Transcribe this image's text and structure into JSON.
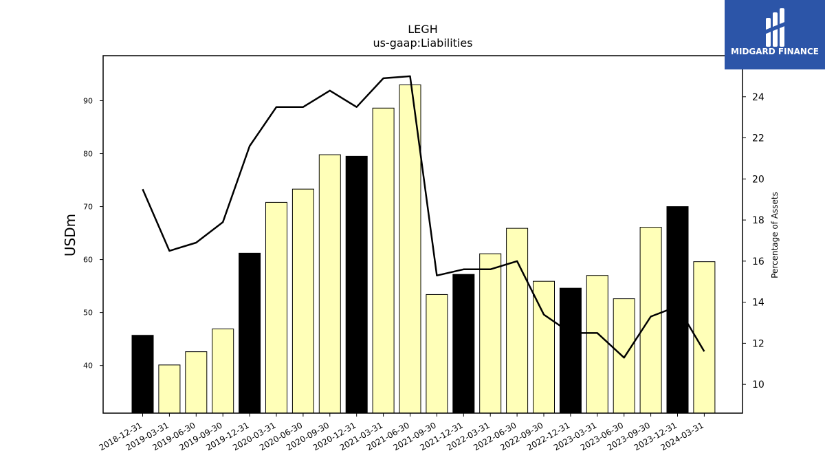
{
  "chart_data": {
    "type": "bar",
    "title": "LEGH",
    "subtitle": "us-gaap:Liabilities",
    "ylabel": "USDm",
    "y2label": "Percentage of Assets",
    "categories": [
      "2018-12-31",
      "2019-03-31",
      "2019-06-30",
      "2019-09-30",
      "2019-12-31",
      "2020-03-31",
      "2020-06-30",
      "2020-09-30",
      "2020-12-31",
      "2021-03-31",
      "2021-06-30",
      "2021-09-30",
      "2021-12-31",
      "2022-03-31",
      "2022-06-30",
      "2022-09-30",
      "2022-12-31",
      "2023-03-31",
      "2023-06-30",
      "2023-09-30",
      "2023-12-31",
      "2024-03-31"
    ],
    "series": [
      {
        "values": [
          45.7,
          40.1,
          42.6,
          46.9,
          61.2,
          70.8,
          73.3,
          79.8,
          79.5,
          88.6,
          93.0,
          53.4,
          57.2,
          61.1,
          65.9,
          55.9,
          54.6,
          57.0,
          52.6,
          66.1,
          70.0,
          59.6
        ]
      },
      {
        "axis": "right",
        "values": [
          19.5,
          16.5,
          16.9,
          17.9,
          21.6,
          23.5,
          23.5,
          24.3,
          23.5,
          24.9,
          25.0,
          15.3,
          15.6,
          15.6,
          16.0,
          13.4,
          12.5,
          12.5,
          11.3,
          13.3,
          13.8,
          11.6
        ]
      }
    ],
    "year_end_highlight": [
      true,
      false,
      false,
      false,
      true,
      false,
      false,
      false,
      true,
      false,
      false,
      false,
      true,
      false,
      false,
      false,
      true,
      false,
      false,
      false,
      true,
      false
    ],
    "ylim": [
      31,
      98.5
    ],
    "y2lim": [
      8.6,
      26.0
    ],
    "yticks": [
      40,
      50,
      60,
      70,
      80,
      90
    ],
    "y2ticks": [
      10,
      12,
      14,
      16,
      18,
      20,
      22,
      24
    ],
    "colors": {
      "bar_default": "#ffffb8",
      "bar_highlight": "#000000",
      "line": "#000000"
    }
  },
  "logo": {
    "text": "MIDGARD FINANCE",
    "background": "#2c55a8"
  }
}
